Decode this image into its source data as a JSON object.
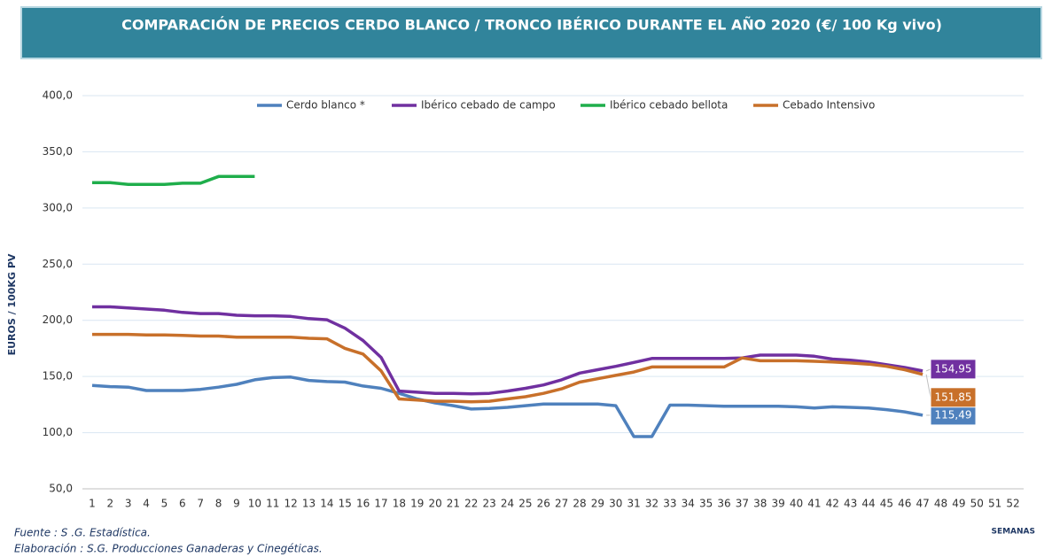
{
  "chart_data": {
    "type": "line",
    "title": "COMPARACIÓN DE PRECIOS CERDO BLANCO / TRONCO IBÉRICO DURANTE EL AÑO 2020 (€/ 100 Kg vivo)",
    "y_label": "EUROS / 100KG PV",
    "x_label": "SEMANAS",
    "notes": [
      "Fuente :  S .G. Estadística.",
      "Elaboración : S.G. Producciones Ganaderas y Cinegéticas."
    ],
    "categories": [
      "1",
      "2",
      "3",
      "4",
      "5",
      "6",
      "7",
      "8",
      "9",
      "10",
      "11",
      "12",
      "13",
      "14",
      "15",
      "16",
      "17",
      "18",
      "19",
      "20",
      "21",
      "22",
      "23",
      "24",
      "25",
      "26",
      "27",
      "28",
      "29",
      "30",
      "31",
      "32",
      "33",
      "34",
      "35",
      "36",
      "37",
      "38",
      "39",
      "40",
      "41",
      "42",
      "43",
      "44",
      "45",
      "46",
      "47",
      "48",
      "49",
      "50",
      "51",
      "52"
    ],
    "ylim": [
      50,
      400
    ],
    "yticks": [
      {
        "value": 50,
        "label": "50,0"
      },
      {
        "value": 100,
        "label": "100,0"
      },
      {
        "value": 150,
        "label": "150,0"
      },
      {
        "value": 200,
        "label": "200,0"
      },
      {
        "value": 250,
        "label": "250,0"
      },
      {
        "value": 300,
        "label": "300,0"
      },
      {
        "value": 350,
        "label": "350,0"
      },
      {
        "value": 400,
        "label": "400,0"
      }
    ],
    "grid": true,
    "legend": "top",
    "series": [
      {
        "name": "Cerdo blanco *",
        "color": "#4f81bd",
        "values": [
          142,
          141,
          140.5,
          137.5,
          137.5,
          137.5,
          138.5,
          140.5,
          143,
          147,
          149,
          149.5,
          146.5,
          145.5,
          145,
          141.5,
          139.5,
          135,
          130,
          126.5,
          124,
          121,
          121.5,
          122.5,
          124,
          125.5,
          125.5,
          125.5,
          125.5,
          124,
          96.5,
          96.5,
          124.5,
          124.5,
          124,
          123.5,
          123.5,
          123.5,
          123.5,
          123,
          122,
          123,
          122.5,
          122,
          120.5,
          118.5,
          115.49,
          null,
          null,
          null,
          null,
          null
        ],
        "value_labels": [
          null,
          null,
          null,
          null,
          null,
          null,
          null,
          null,
          null,
          null,
          null,
          null,
          null,
          null,
          null,
          null,
          null,
          null,
          null,
          null,
          null,
          null,
          null,
          null,
          null,
          null,
          null,
          null,
          null,
          null,
          null,
          null,
          null,
          null,
          null,
          null,
          null,
          null,
          null,
          null,
          null,
          null,
          null,
          null,
          null,
          null,
          "115,49",
          null,
          null,
          null,
          null,
          null
        ]
      },
      {
        "name": "Ibérico cebado de campo",
        "color": "#7030a0",
        "values": [
          212,
          212,
          211,
          210,
          209,
          207,
          206,
          206,
          204.5,
          204,
          204,
          203.5,
          201.5,
          200.5,
          193,
          182,
          167,
          137,
          136,
          135,
          135,
          134.5,
          135,
          137,
          139.5,
          142.5,
          147,
          153,
          156,
          159,
          162.5,
          166,
          166,
          166,
          166,
          166,
          166.5,
          169,
          169,
          169,
          168,
          165.5,
          164.5,
          163,
          160.5,
          158,
          154.95,
          null,
          null,
          null,
          null,
          null
        ],
        "value_labels": [
          null,
          null,
          null,
          null,
          null,
          null,
          null,
          null,
          null,
          null,
          null,
          null,
          null,
          null,
          null,
          null,
          null,
          null,
          null,
          null,
          null,
          null,
          null,
          null,
          null,
          null,
          null,
          null,
          null,
          null,
          null,
          null,
          null,
          null,
          null,
          null,
          null,
          null,
          null,
          null,
          null,
          null,
          null,
          null,
          null,
          null,
          "154,95",
          null,
          null,
          null,
          null,
          null
        ]
      },
      {
        "name": "Ibérico cebado bellota",
        "color": "#1fae4b",
        "values": [
          322.5,
          322.5,
          321,
          321,
          321,
          322,
          322,
          328,
          328,
          328,
          null,
          null,
          null,
          null,
          null,
          null,
          null,
          null,
          null,
          null,
          null,
          null,
          null,
          null,
          null,
          null,
          null,
          null,
          null,
          null,
          null,
          null,
          null,
          null,
          null,
          null,
          null,
          null,
          null,
          null,
          null,
          null,
          null,
          null,
          null,
          null,
          null,
          null,
          null,
          null,
          null,
          null
        ]
      },
      {
        "name": "Cebado Intensivo",
        "color": "#c8702a",
        "values": [
          187.5,
          187.5,
          187.5,
          187,
          187,
          186.5,
          186,
          186,
          185,
          185,
          185,
          185,
          184,
          183.5,
          175,
          170,
          155,
          130,
          129,
          128,
          128,
          127.5,
          128,
          130,
          132,
          135,
          139,
          145,
          148,
          151,
          154,
          158.5,
          158.5,
          158.5,
          158.5,
          158.5,
          166.5,
          164,
          164,
          164,
          163.5,
          163,
          162,
          161,
          159,
          156,
          151.85,
          null,
          null,
          null,
          null,
          null
        ],
        "value_labels": [
          null,
          null,
          null,
          null,
          null,
          null,
          null,
          null,
          null,
          null,
          null,
          null,
          null,
          null,
          null,
          null,
          null,
          null,
          null,
          null,
          null,
          null,
          null,
          null,
          null,
          null,
          null,
          null,
          null,
          null,
          null,
          null,
          null,
          null,
          null,
          null,
          null,
          null,
          null,
          null,
          null,
          null,
          null,
          null,
          null,
          null,
          "151,85",
          null,
          null,
          null,
          null,
          null
        ]
      }
    ]
  }
}
